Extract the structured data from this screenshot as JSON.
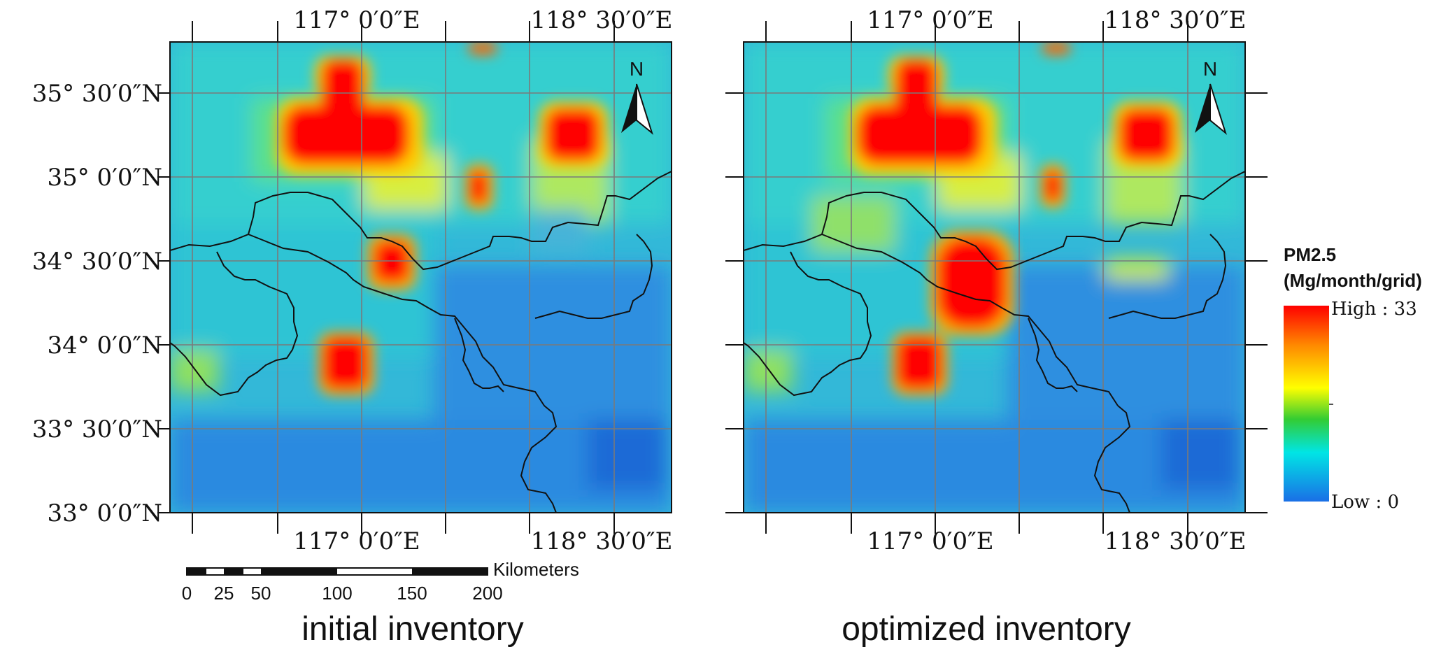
{
  "panels": [
    {
      "id": "initial",
      "caption": "initial inventory",
      "north_label": "N",
      "top_lon_labels": [
        "117°  0′0″E",
        "118°  30′0″E"
      ],
      "bottom_lon_labels": [
        "117°  0′0″E",
        "118°  30′0″E"
      ],
      "lat_labels": [
        "35°  30′0″N",
        "35°  0′0″N",
        "34°  30′0″N",
        "34°  0′0″N",
        "33°  30′0″N",
        "33°  0′0″N"
      ],
      "hotspots": [
        "large-north-west",
        "north-small-top",
        "north-east",
        "east-central-small",
        "center-small",
        "south-west"
      ]
    },
    {
      "id": "optimized",
      "caption": "optimized  inventory",
      "north_label": "N",
      "top_lon_labels": [
        "117°  0′0″E",
        "118°  30′0″E"
      ],
      "bottom_lon_labels": [
        "117°  0′0″E",
        "118°  30′0″E"
      ],
      "lat_labels": [],
      "hotspots": [
        "large-north-west",
        "north-small-top",
        "north-east",
        "east-central-small",
        "center-large",
        "south-west"
      ]
    }
  ],
  "scale_bar": {
    "unit": "Kilometers",
    "ticks": [
      "0",
      "25",
      "50",
      "100",
      "150",
      "200"
    ]
  },
  "legend": {
    "title_line1": "PM2.5",
    "title_line2": "(Mg/month/grid)",
    "high_label": "High : 33",
    "low_label": "Low : 0",
    "colors": [
      "#ff0000",
      "#ff8800",
      "#ffff00",
      "#33cc33",
      "#00e5e5",
      "#1a6fe6"
    ]
  }
}
